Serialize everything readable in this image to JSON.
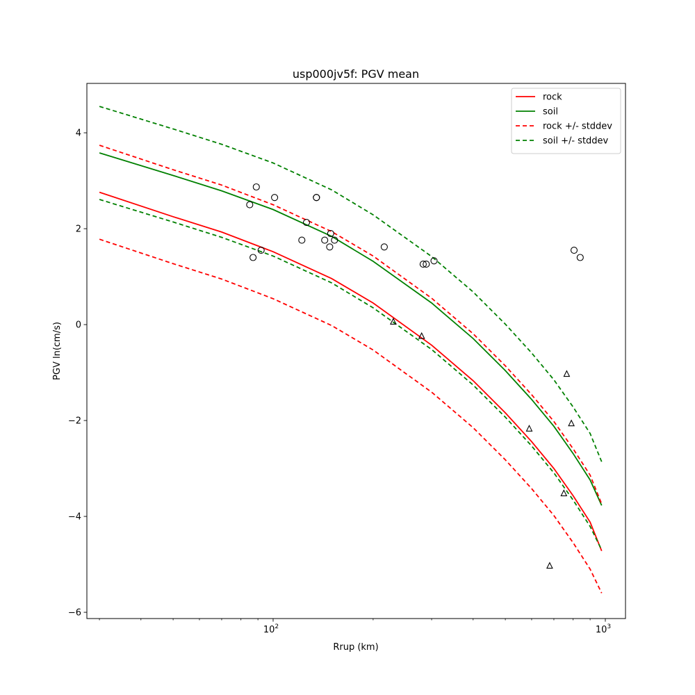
{
  "chart_data": {
    "type": "line",
    "title": "usp000jv5f: PGV mean",
    "xlabel": "Rrup (km)",
    "ylabel": "PGV ln(cm/s)",
    "xscale": "log",
    "xlim": [
      27.5,
      1150
    ],
    "ylim": [
      -6.13,
      5.03
    ],
    "xticks": [
      {
        "value": 100,
        "base": "10",
        "exp": "2"
      },
      {
        "value": 1000,
        "base": "10",
        "exp": "3"
      }
    ],
    "yticks": [
      {
        "value": -6,
        "label": "−6"
      },
      {
        "value": -4,
        "label": "−4"
      },
      {
        "value": -2,
        "label": "−2"
      },
      {
        "value": 0,
        "label": "0"
      },
      {
        "value": 2,
        "label": "2"
      },
      {
        "value": 4,
        "label": "4"
      }
    ],
    "grid": false,
    "legend_position": "top-right",
    "series": [
      {
        "name": "rock",
        "color": "#ff0000",
        "style": "solid",
        "x": [
          30,
          50,
          70,
          100,
          150,
          200,
          300,
          400,
          500,
          600,
          700,
          800,
          900,
          975
        ],
        "y": [
          2.76,
          2.25,
          1.93,
          1.52,
          0.96,
          0.45,
          -0.43,
          -1.17,
          -1.84,
          -2.44,
          -3.0,
          -3.57,
          -4.12,
          -4.72
        ]
      },
      {
        "name": "soil",
        "color": "#008000",
        "style": "solid",
        "x": [
          30,
          50,
          70,
          100,
          150,
          200,
          300,
          400,
          500,
          600,
          700,
          800,
          900,
          975
        ],
        "y": [
          3.58,
          3.11,
          2.79,
          2.4,
          1.84,
          1.32,
          0.45,
          -0.29,
          -0.96,
          -1.56,
          -2.12,
          -2.69,
          -3.24,
          -3.77
        ]
      },
      {
        "name": "rock +/- stddev",
        "color": "#ff0000",
        "style": "dashed",
        "x": [
          30,
          50,
          70,
          100,
          150,
          200,
          300,
          400,
          500,
          600,
          700,
          800,
          900,
          975
        ],
        "y": [
          3.74,
          3.23,
          2.91,
          2.5,
          1.94,
          1.43,
          0.55,
          -0.19,
          -0.86,
          -1.46,
          -2.02,
          -2.59,
          -3.14,
          -3.74
        ]
      },
      {
        "name": "",
        "color": "#ff0000",
        "style": "dashed",
        "x": [
          30,
          50,
          70,
          100,
          150,
          200,
          300,
          400,
          500,
          600,
          700,
          800,
          900,
          975
        ],
        "y": [
          1.78,
          1.27,
          0.95,
          0.54,
          -0.02,
          -0.53,
          -1.41,
          -2.15,
          -2.82,
          -3.42,
          -3.98,
          -4.55,
          -5.1,
          -5.6
        ]
      },
      {
        "name": "soil +/- stddev",
        "color": "#008000",
        "style": "dashed",
        "x": [
          30,
          50,
          70,
          100,
          150,
          200,
          300,
          400,
          500,
          600,
          700,
          800,
          900,
          975
        ],
        "y": [
          4.55,
          4.08,
          3.76,
          3.37,
          2.81,
          2.29,
          1.42,
          0.68,
          0.01,
          -0.59,
          -1.15,
          -1.72,
          -2.27,
          -2.86
        ]
      },
      {
        "name": "",
        "color": "#008000",
        "style": "dashed",
        "x": [
          30,
          50,
          70,
          100,
          150,
          200,
          300,
          400,
          500,
          600,
          700,
          800,
          900,
          975
        ],
        "y": [
          2.61,
          2.14,
          1.82,
          1.43,
          0.87,
          0.35,
          -0.52,
          -1.26,
          -1.93,
          -2.53,
          -3.09,
          -3.66,
          -4.21,
          -4.7
        ]
      }
    ],
    "points": [
      {
        "marker": "circle",
        "x": [
          85,
          87,
          89,
          92,
          101,
          122,
          126,
          135,
          135,
          143,
          148,
          149,
          153,
          216,
          283,
          289,
          305,
          805,
          840
        ],
        "y": [
          2.5,
          1.4,
          2.87,
          1.55,
          2.65,
          1.76,
          2.13,
          2.65,
          2.65,
          1.76,
          1.62,
          1.9,
          1.76,
          1.62,
          1.26,
          1.26,
          1.33,
          1.55,
          1.4
        ]
      },
      {
        "marker": "triangle",
        "x": [
          230,
          280,
          590,
          680,
          750,
          765,
          790
        ],
        "y": [
          0.06,
          -0.24,
          -2.17,
          -5.03,
          -3.52,
          -1.03,
          -2.06
        ]
      }
    ]
  }
}
